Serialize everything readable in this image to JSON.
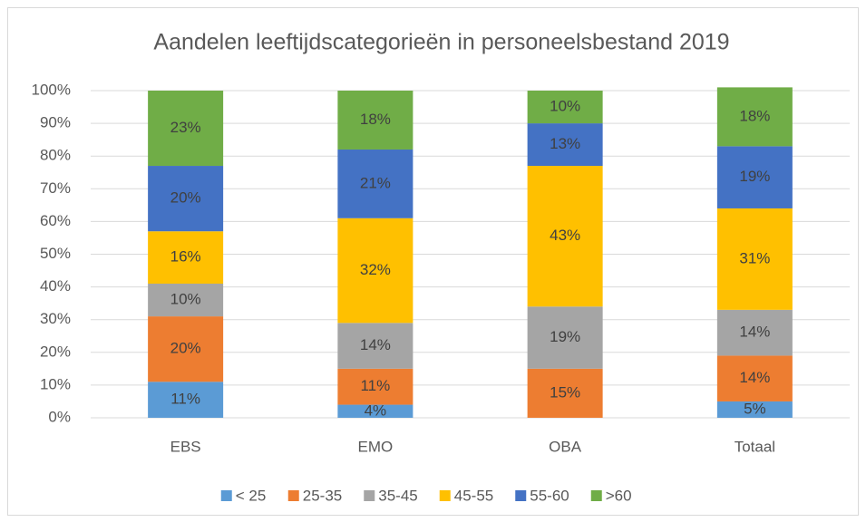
{
  "chart_data": {
    "type": "stacked_bar",
    "title": "Aandelen leeftijdscategorieën in personeelsbestand 2019",
    "categories": [
      "EBS",
      "EMO",
      "OBA",
      "Totaal"
    ],
    "series": [
      {
        "name": "< 25",
        "color": "#5b9bd5",
        "values": [
          11,
          4,
          null,
          5
        ],
        "value_labels": [
          "11%",
          "4%",
          null,
          "5%"
        ]
      },
      {
        "name": "25-35",
        "color": "#ed7d31",
        "values": [
          20,
          11,
          15,
          14
        ],
        "value_labels": [
          "20%",
          "11%",
          "15%",
          "14%"
        ]
      },
      {
        "name": "35-45",
        "color": "#a5a5a5",
        "values": [
          10,
          14,
          19,
          14
        ],
        "value_labels": [
          "10%",
          "14%",
          "19%",
          "14%"
        ]
      },
      {
        "name": "45-55",
        "color": "#ffc000",
        "values": [
          16,
          32,
          43,
          31
        ],
        "value_labels": [
          "16%",
          "32%",
          "43%",
          "31%"
        ]
      },
      {
        "name": "55-60",
        "color": "#4472c4",
        "values": [
          20,
          21,
          13,
          19
        ],
        "value_labels": [
          "20%",
          "21%",
          "13%",
          "19%"
        ]
      },
      {
        "name": ">60",
        "color": "#70ad47",
        "values": [
          23,
          18,
          10,
          18
        ],
        "value_labels": [
          "23%",
          "18%",
          "10%",
          "18%"
        ]
      }
    ],
    "ylim": [
      0,
      100
    ],
    "yticks": [
      {
        "value": 0,
        "label": "0%"
      },
      {
        "value": 10,
        "label": "10%"
      },
      {
        "value": 20,
        "label": "20%"
      },
      {
        "value": 30,
        "label": "30%"
      },
      {
        "value": 40,
        "label": "40%"
      },
      {
        "value": 50,
        "label": "50%"
      },
      {
        "value": 60,
        "label": "60%"
      },
      {
        "value": 70,
        "label": "70%"
      },
      {
        "value": 80,
        "label": "80%"
      },
      {
        "value": 90,
        "label": "90%"
      },
      {
        "value": 100,
        "label": "100%"
      }
    ],
    "grid": true,
    "legend": "bottom"
  }
}
